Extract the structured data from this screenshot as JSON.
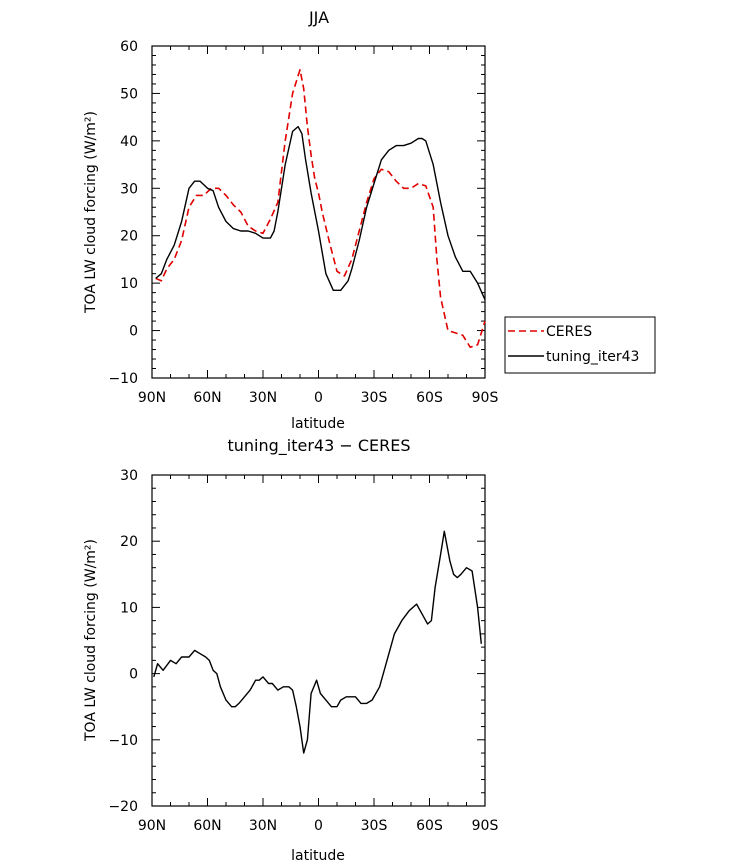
{
  "chart_data": [
    {
      "type": "line",
      "title": "JJA",
      "xlabel": "latitude",
      "ylabel": "TOA LW cloud forcing (W/m²)",
      "xlim": [
        90,
        -90
      ],
      "ylim": [
        -10,
        60
      ],
      "xticks": [
        90,
        60,
        30,
        0,
        -30,
        -60,
        -90
      ],
      "xtick_labels": [
        "90N",
        "60N",
        "30N",
        "0",
        "30S",
        "60S",
        "90S"
      ],
      "yticks": [
        -10,
        0,
        10,
        20,
        30,
        40,
        50,
        60
      ],
      "ytick_labels": [
        "−10",
        "0",
        "10",
        "20",
        "30",
        "40",
        "50",
        "60"
      ],
      "grid": false,
      "legend": "right",
      "series": [
        {
          "name": "CERES",
          "color": "#e00000",
          "dash": "dashed",
          "x": [
            88,
            85,
            82,
            78,
            74,
            70,
            66,
            62,
            58,
            54,
            50,
            46,
            42,
            38,
            34,
            30,
            26,
            22,
            18,
            14,
            10,
            8,
            6,
            4,
            2,
            0,
            -2,
            -6,
            -10,
            -14,
            -18,
            -22,
            -26,
            -30,
            -34,
            -38,
            -42,
            -46,
            -50,
            -54,
            -58,
            -62,
            -64,
            -66,
            -70,
            -74,
            -78,
            -82,
            -86,
            -90
          ],
          "y": [
            11,
            10.5,
            13,
            15,
            19,
            26,
            28.5,
            28.5,
            30,
            30,
            28.5,
            26.5,
            25,
            22,
            21,
            20.5,
            23.5,
            27,
            40,
            50,
            55,
            51,
            43,
            37,
            32,
            29,
            25,
            18.5,
            12.5,
            11.5,
            15,
            21,
            27,
            32,
            34,
            33.5,
            31.5,
            30,
            30,
            31,
            30.5,
            26,
            15,
            7,
            0,
            -0.5,
            -1,
            -3.5,
            -3,
            2
          ]
        },
        {
          "name": "tuning_iter43",
          "color": "#000000",
          "dash": "solid",
          "x": [
            88,
            85,
            82,
            78,
            74,
            70,
            67,
            64,
            60,
            57,
            54,
            50,
            46,
            42,
            38,
            34,
            30,
            26,
            24,
            22,
            18,
            14,
            11,
            9,
            7,
            4,
            0,
            -4,
            -8,
            -12,
            -16,
            -18,
            -22,
            -26,
            -30,
            -34,
            -38,
            -42,
            -46,
            -50,
            -54,
            -56,
            -58,
            -62,
            -66,
            -70,
            -74,
            -78,
            -82,
            -86,
            -90
          ],
          "y": [
            11,
            12,
            15,
            18,
            23,
            30,
            31.5,
            31.5,
            30,
            29.5,
            26,
            23,
            21.5,
            21,
            21,
            20.5,
            19.5,
            19.5,
            21,
            25,
            35,
            42,
            43,
            41.5,
            36,
            29,
            21,
            12,
            8.5,
            8.5,
            10.5,
            13,
            19,
            26,
            31,
            36,
            38,
            39,
            39,
            39.5,
            40.5,
            40.5,
            40,
            35,
            27,
            20,
            15.5,
            12.5,
            12.5,
            10,
            6.5
          ]
        }
      ]
    },
    {
      "type": "line",
      "title": "tuning_iter43 − CERES",
      "xlabel": "latitude",
      "ylabel": "TOA LW cloud forcing (W/m²)",
      "xlim": [
        90,
        -90
      ],
      "ylim": [
        -20,
        30
      ],
      "xticks": [
        90,
        60,
        30,
        0,
        -30,
        -60,
        -90
      ],
      "xtick_labels": [
        "90N",
        "60N",
        "30N",
        "0",
        "30S",
        "60S",
        "90S"
      ],
      "yticks": [
        -20,
        -10,
        0,
        10,
        20,
        30
      ],
      "ytick_labels": [
        "−20",
        "−10",
        "0",
        "10",
        "20",
        "30"
      ],
      "grid": false,
      "series": [
        {
          "color": "#000000",
          "dash": "solid",
          "x": [
            89,
            87,
            84,
            80,
            77,
            74,
            70,
            67,
            64,
            61,
            59,
            57,
            55,
            53,
            50,
            47,
            45,
            43,
            40,
            37,
            34,
            32,
            30,
            27,
            25,
            22,
            19,
            16,
            14,
            12,
            10,
            8,
            6,
            4,
            1,
            -1,
            -4,
            -7,
            -10,
            -12,
            -15,
            -18,
            -20,
            -23,
            -26,
            -29,
            -33,
            -37,
            -41,
            -45,
            -49,
            -53,
            -57,
            -59,
            -61,
            -63,
            -66,
            -68,
            -71,
            -73,
            -75,
            -77,
            -80,
            -83,
            -86,
            -88
          ],
          "y": [
            -0.5,
            1.5,
            0.5,
            2,
            1.5,
            2.5,
            2.5,
            3.5,
            3,
            2.5,
            2,
            0.5,
            0,
            -2,
            -4,
            -5,
            -5,
            -4.5,
            -3.5,
            -2.5,
            -1,
            -1,
            -0.5,
            -1.5,
            -1.5,
            -2.5,
            -2,
            -2,
            -2.5,
            -5,
            -8,
            -12,
            -10,
            -3,
            -1,
            -3,
            -4,
            -5,
            -5,
            -4,
            -3.5,
            -3.5,
            -3.5,
            -4.5,
            -4.5,
            -4,
            -2,
            2,
            6,
            8,
            9.5,
            10.5,
            8.5,
            7.5,
            8,
            13,
            18,
            21.5,
            17,
            15,
            14.5,
            15,
            16,
            15.5,
            10,
            4.5
          ]
        }
      ]
    }
  ]
}
